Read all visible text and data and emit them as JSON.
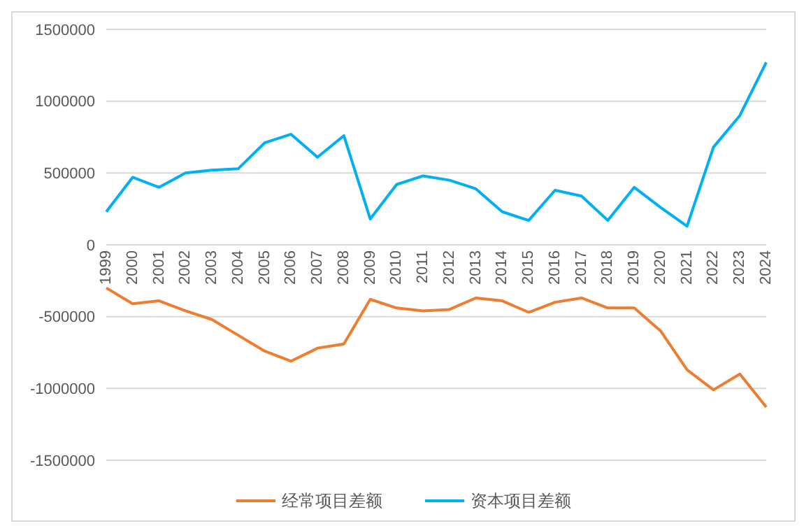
{
  "chart_data": {
    "type": "line",
    "categories": [
      "1999",
      "2000",
      "2001",
      "2002",
      "2003",
      "2004",
      "2005",
      "2006",
      "2007",
      "2008",
      "2009",
      "2010",
      "2011",
      "2012",
      "2013",
      "2014",
      "2015",
      "2016",
      "2017",
      "2018",
      "2019",
      "2020",
      "2021",
      "2022",
      "2023",
      "2024"
    ],
    "series": [
      {
        "name": "经常项目差额",
        "color": "#ed7d31",
        "values": [
          -300000,
          -410000,
          -390000,
          -460000,
          -520000,
          -630000,
          -740000,
          -810000,
          -720000,
          -690000,
          -380000,
          -440000,
          -460000,
          -450000,
          -370000,
          -390000,
          -470000,
          -400000,
          -370000,
          -440000,
          -440000,
          -600000,
          -870000,
          -1010000,
          -900000,
          -1130000
        ]
      },
      {
        "name": "资本项目差额",
        "color": "#00b0f0",
        "values": [
          230000,
          470000,
          400000,
          500000,
          520000,
          530000,
          710000,
          770000,
          610000,
          760000,
          180000,
          420000,
          480000,
          450000,
          390000,
          230000,
          170000,
          380000,
          340000,
          170000,
          400000,
          260000,
          130000,
          680000,
          900000,
          1270000
        ]
      }
    ],
    "ylim": [
      -1500000,
      1500000
    ],
    "yticks": [
      -1500000,
      -1000000,
      -500000,
      0,
      500000,
      1000000,
      1500000
    ],
    "grid": "y",
    "legend": "bottom",
    "marker": "none",
    "line_style": "solid"
  }
}
